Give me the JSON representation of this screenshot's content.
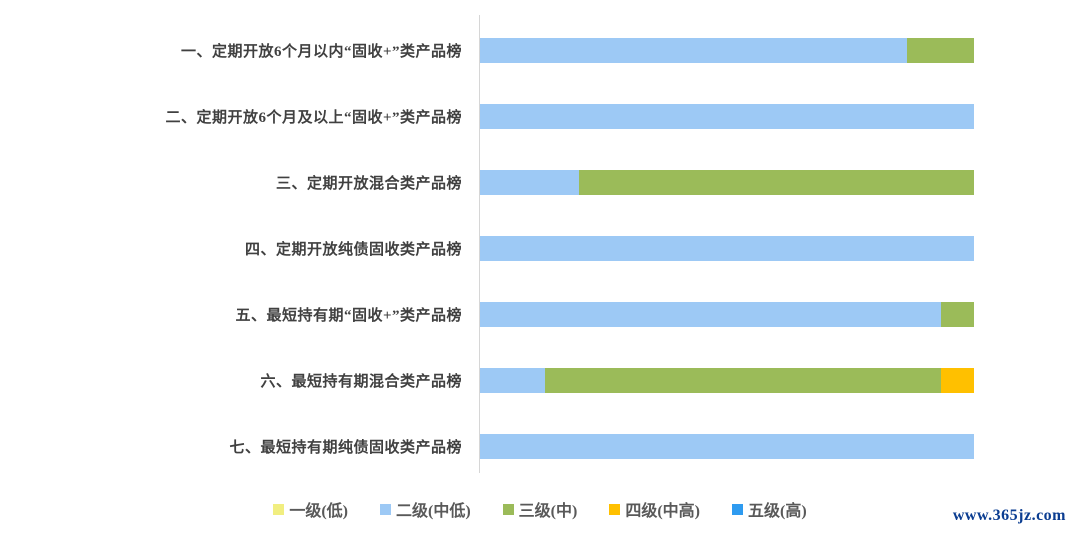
{
  "watermark": {
    "text": "www.365jz.com",
    "color": "#0b3d91"
  },
  "chart_data": {
    "type": "bar",
    "orientation": "horizontal",
    "stacked": true,
    "unit": "percent_of_products",
    "title": "",
    "xlabel": "",
    "ylabel": "",
    "xlim": [
      0,
      100
    ],
    "grid": false,
    "legend_position": "bottom",
    "axis_color": "#d6d6d6",
    "categories": [
      "一、定期开放6个月以内“固收+”类产品榜",
      "二、定期开放6个月及以上“固收+”类产品榜",
      "三、定期开放混合类产品榜",
      "四、定期开放纯债固收类产品榜",
      "五、最短持有期“固收+”类产品榜",
      "六、最短持有期混合类产品榜",
      "七、最短持有期纯债固收类产品榜"
    ],
    "series": [
      {
        "name": "一级(低)",
        "color": "#f1ee80",
        "values": [
          0,
          0,
          0,
          0,
          0,
          0,
          0
        ]
      },
      {
        "name": "二级(中低)",
        "color": "#9dc9f5",
        "values": [
          86.5,
          100,
          20,
          100,
          93.3,
          13.1,
          100
        ]
      },
      {
        "name": "三级(中)",
        "color": "#9bbb59",
        "values": [
          13.5,
          0,
          80,
          0,
          6.7,
          80.2,
          0
        ]
      },
      {
        "name": "四级(中高)",
        "color": "#ffc000",
        "values": [
          0,
          0,
          0,
          0,
          0,
          6.7,
          0
        ]
      },
      {
        "name": "五级(高)",
        "color": "#2e9bf0",
        "values": [
          0,
          0,
          0,
          0,
          0,
          0,
          0
        ]
      }
    ]
  }
}
